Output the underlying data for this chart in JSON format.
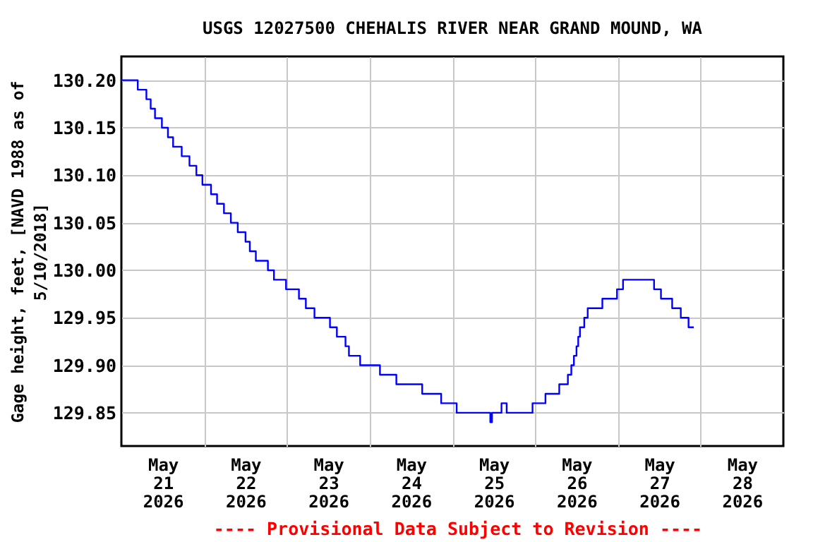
{
  "chart_data": {
    "type": "step",
    "title": "USGS 12027500 CHEHALIS RIVER NEAR GRAND MOUND, WA",
    "ylabel": "Gage height, feet, [NAVD 1988 as of 5/10/2018]",
    "annotations": [
      "---- Provisional Data Subject to Revision ----"
    ],
    "x": [
      "2026-05-21T00:00",
      "2026-05-21T04:45",
      "2026-05-21T07:15",
      "2026-05-21T08:30",
      "2026-05-21T09:45",
      "2026-05-21T11:45",
      "2026-05-21T13:30",
      "2026-05-21T15:00",
      "2026-05-21T17:30",
      "2026-05-21T19:45",
      "2026-05-21T21:45",
      "2026-05-21T23:30",
      "2026-05-22T02:00",
      "2026-05-22T03:45",
      "2026-05-22T05:45",
      "2026-05-22T07:45",
      "2026-05-22T09:45",
      "2026-05-22T12:00",
      "2026-05-22T13:15",
      "2026-05-22T15:00",
      "2026-05-22T18:30",
      "2026-05-22T20:15",
      "2026-05-22T23:45",
      "2026-05-23T03:30",
      "2026-05-23T05:30",
      "2026-05-23T08:00",
      "2026-05-23T12:30",
      "2026-05-23T14:30",
      "2026-05-23T17:00",
      "2026-05-23T18:00",
      "2026-05-23T21:15",
      "2026-05-24T03:00",
      "2026-05-24T07:45",
      "2026-05-24T15:15",
      "2026-05-24T20:45",
      "2026-05-25T01:15",
      "2026-05-25T11:00",
      "2026-05-25T11:30",
      "2026-05-25T14:15",
      "2026-05-25T15:45",
      "2026-05-25T23:15",
      "2026-05-26T03:00",
      "2026-05-26T07:00",
      "2026-05-26T09:30",
      "2026-05-26T10:30",
      "2026-05-26T11:15",
      "2026-05-26T12:00",
      "2026-05-26T12:30",
      "2026-05-26T13:00",
      "2026-05-26T14:15",
      "2026-05-26T15:15",
      "2026-05-26T19:30",
      "2026-05-26T23:45",
      "2026-05-27T01:30",
      "2026-05-27T10:30",
      "2026-05-27T12:30",
      "2026-05-27T15:45",
      "2026-05-27T18:15",
      "2026-05-27T20:30",
      "2026-05-27T22:00"
    ],
    "series": [
      {
        "color": "#0000ff",
        "values": [
          130.2,
          130.19,
          130.18,
          130.17,
          130.16,
          130.15,
          130.14,
          130.13,
          130.12,
          130.11,
          130.1,
          130.09,
          130.08,
          130.07,
          130.06,
          130.05,
          130.04,
          130.03,
          130.02,
          130.01,
          130.0,
          129.99,
          129.98,
          129.97,
          129.96,
          129.95,
          129.94,
          129.93,
          129.92,
          129.91,
          129.9,
          129.89,
          129.88,
          129.87,
          129.86,
          129.85,
          129.84,
          129.85,
          129.86,
          129.85,
          129.86,
          129.87,
          129.88,
          129.89,
          129.9,
          129.91,
          129.92,
          129.93,
          129.94,
          129.95,
          129.96,
          129.97,
          129.98,
          129.99,
          129.98,
          129.97,
          129.96,
          129.95,
          129.94,
          129.94
        ]
      }
    ],
    "xlim": [
      "2026-05-21T00:00",
      "2026-05-29T00:00"
    ],
    "xticks": [
      {
        "value": "2026-05-21T12:00",
        "label": "May 21 2026"
      },
      {
        "value": "2026-05-22T00:00",
        "label": null
      },
      {
        "value": "2026-05-22T12:00",
        "label": "May 22 2026"
      },
      {
        "value": "2026-05-23T00:00",
        "label": null
      },
      {
        "value": "2026-05-23T12:00",
        "label": "May 23 2026"
      },
      {
        "value": "2026-05-24T00:00",
        "label": null
      },
      {
        "value": "2026-05-24T12:00",
        "label": "May 24 2026"
      },
      {
        "value": "2026-05-25T00:00",
        "label": null
      },
      {
        "value": "2026-05-25T12:00",
        "label": "May 25 2026"
      },
      {
        "value": "2026-05-26T00:00",
        "label": null
      },
      {
        "value": "2026-05-26T12:00",
        "label": "May 26 2026"
      },
      {
        "value": "2026-05-27T00:00",
        "label": null
      },
      {
        "value": "2026-05-27T12:00",
        "label": "May 27 2026"
      },
      {
        "value": "2026-05-28T00:00",
        "label": null
      },
      {
        "value": "2026-05-28T12:00",
        "label": "May 28 2026"
      }
    ],
    "ylim": [
      129.815,
      130.225
    ],
    "yticks": [
      {
        "value": 129.85,
        "label": "129.85"
      },
      {
        "value": 129.9,
        "label": "129.90"
      },
      {
        "value": 129.95,
        "label": "129.95"
      },
      {
        "value": 130.0,
        "label": "130.00"
      },
      {
        "value": 130.05,
        "label": "130.05"
      },
      {
        "value": 130.1,
        "label": "130.10"
      },
      {
        "value": 130.15,
        "label": "130.15"
      },
      {
        "value": 130.2,
        "label": "130.20"
      }
    ],
    "grid": true,
    "line_style": "solid"
  }
}
